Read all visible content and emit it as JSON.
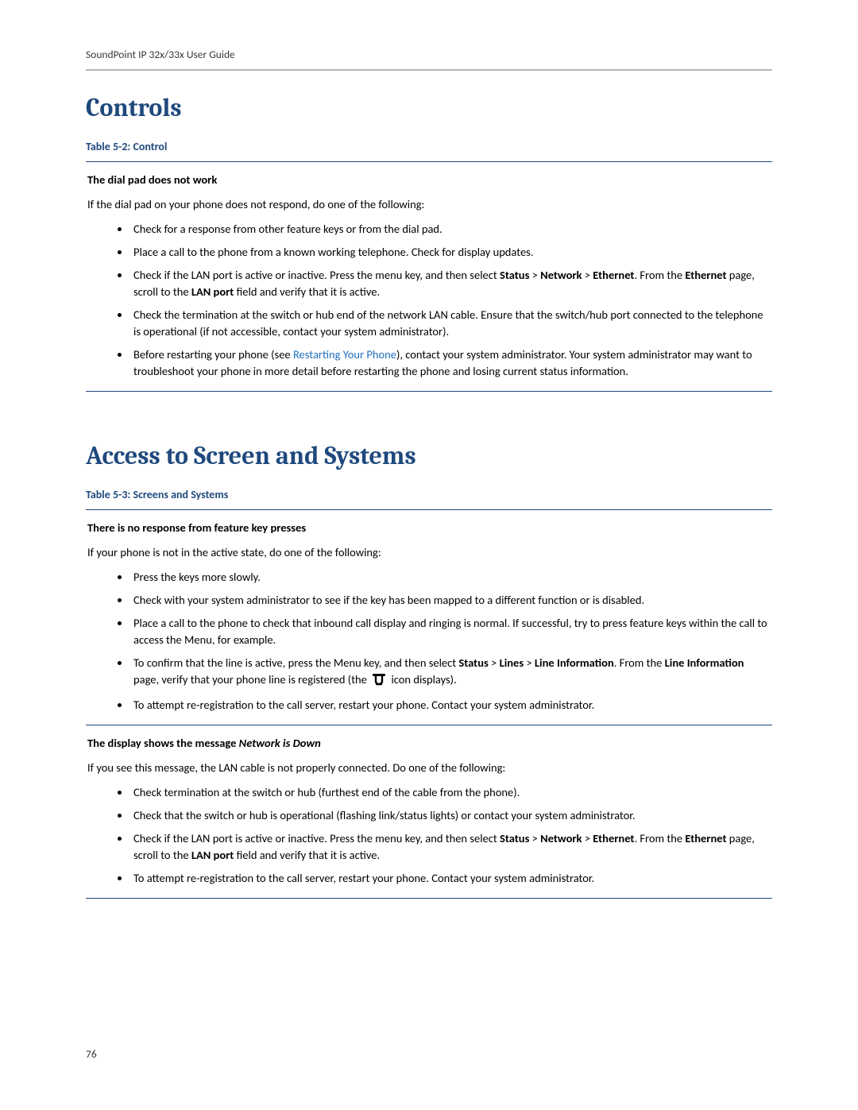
{
  "header": "SoundPoint IP 32x/33x User Guide",
  "page_number": "76",
  "colors": {
    "heading": "#1f497d",
    "link": "#1f6fbf",
    "rule": "#b7b7b7",
    "table_border": "#1f497d",
    "text": "#000000"
  },
  "sections": [
    {
      "heading": "Controls",
      "table_caption": "Table 5-2: Control",
      "rows": [
        {
          "title": "The dial pad does not work",
          "intro": "If the dial pad on your phone does not respond, do one of the following:",
          "bullets": [
            {
              "parts": [
                {
                  "t": "Check for a response from other feature keys or from the dial pad."
                }
              ]
            },
            {
              "parts": [
                {
                  "t": "Place a call to the phone from a known working telephone. Check for display updates."
                }
              ]
            },
            {
              "parts": [
                {
                  "t": "Check if the LAN port is active or inactive. Press the menu key, and then select "
                },
                {
                  "t": "Status",
                  "b": true
                },
                {
                  "t": " > "
                },
                {
                  "t": "Network",
                  "b": true
                },
                {
                  "t": " > "
                },
                {
                  "t": "Ethernet",
                  "b": true
                },
                {
                  "t": ". From the "
                },
                {
                  "t": "Ethernet",
                  "b": true
                },
                {
                  "t": " page, scroll to the "
                },
                {
                  "t": "LAN port",
                  "b": true
                },
                {
                  "t": " field and verify that it is active."
                }
              ]
            },
            {
              "parts": [
                {
                  "t": "Check the termination at the switch or hub end of the network LAN cable. Ensure that the switch/hub port connected to the telephone is operational (if not accessible, contact your system administrator)."
                }
              ]
            },
            {
              "parts": [
                {
                  "t": "Before restarting your phone (see "
                },
                {
                  "t": "Restarting Your Phone",
                  "link": true
                },
                {
                  "t": "), contact your system administrator. Your system administrator may want to troubleshoot your phone in more detail before restarting the phone and losing current status information."
                }
              ]
            }
          ]
        }
      ]
    },
    {
      "heading": "Access to Screen and Systems",
      "table_caption": "Table 5-3: Screens and Systems",
      "rows": [
        {
          "title": "There is no response from feature key presses",
          "intro": "If your phone is not in the active state, do one of the following:",
          "bullets": [
            {
              "parts": [
                {
                  "t": "Press the keys more slowly."
                }
              ]
            },
            {
              "parts": [
                {
                  "t": "Check with your system administrator to see if the key has been mapped to a different function or is disabled."
                }
              ]
            },
            {
              "parts": [
                {
                  "t": "Place a call to the phone to check that inbound call display and ringing is normal. If successful, try to press feature keys within the call to access the Menu, for example."
                }
              ]
            },
            {
              "parts": [
                {
                  "t": "To confirm that the line is active, press the Menu key, and then select "
                },
                {
                  "t": "Status",
                  "b": true
                },
                {
                  "t": " > "
                },
                {
                  "t": "Lines",
                  "b": true
                },
                {
                  "t": " > "
                },
                {
                  "t": "Line Information",
                  "b": true
                },
                {
                  "t": ". From the "
                },
                {
                  "t": "Line Information",
                  "b": true
                },
                {
                  "t": " page, verify that your phone line is registered (the "
                },
                {
                  "icon": "phone-registered"
                },
                {
                  "t": " icon displays)."
                }
              ]
            },
            {
              "parts": [
                {
                  "t": "To attempt re-registration to the call server, restart your phone. Contact your system administrator."
                }
              ]
            }
          ]
        },
        {
          "title_parts": [
            {
              "t": "The display shows the message ",
              "b": true
            },
            {
              "t": "Network is Down",
              "i": true
            }
          ],
          "intro": "If you see this message, the LAN cable is not properly connected. Do one of the following:",
          "bullets": [
            {
              "parts": [
                {
                  "t": "Check termination at the switch or hub (furthest end of the cable from the phone)."
                }
              ]
            },
            {
              "parts": [
                {
                  "t": "Check that the switch or hub is operational (flashing link/status lights) or contact your system administrator."
                }
              ]
            },
            {
              "parts": [
                {
                  "t": "Check if the LAN port is active or inactive. Press the menu key, and then select "
                },
                {
                  "t": "Status",
                  "b": true
                },
                {
                  "t": " > "
                },
                {
                  "t": "Network",
                  "b": true
                },
                {
                  "t": " > "
                },
                {
                  "t": "Ethernet",
                  "b": true
                },
                {
                  "t": ". From the "
                },
                {
                  "t": "Ethernet",
                  "b": true
                },
                {
                  "t": " page, scroll to the "
                },
                {
                  "t": "LAN port",
                  "b": true
                },
                {
                  "t": " field and verify that it is active."
                }
              ]
            },
            {
              "parts": [
                {
                  "t": "To attempt re-registration to the call server, restart your phone. Contact your system administrator."
                }
              ]
            }
          ]
        }
      ]
    }
  ]
}
